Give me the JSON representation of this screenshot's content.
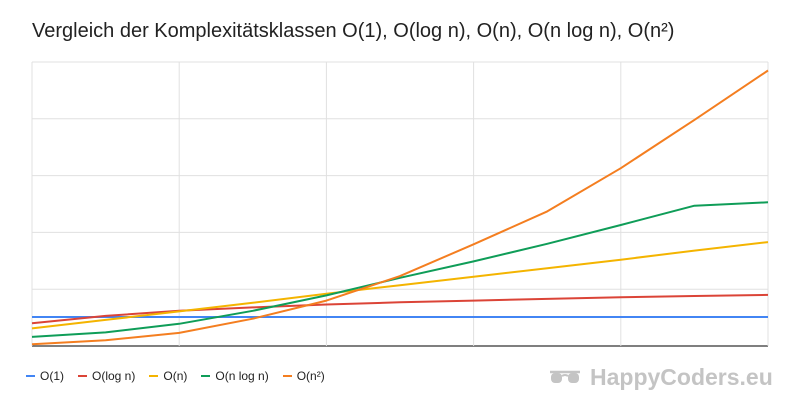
{
  "chart_data": {
    "type": "line",
    "title": "Vergleich der Komplexitätsklassen O(1), O(log n), O(n), O(n log n), O(n²)",
    "xlabel": "",
    "ylabel": "",
    "x": [
      1,
      2,
      3,
      4,
      5,
      6,
      7,
      8,
      9,
      10,
      11
    ],
    "xlim": [
      1,
      11
    ],
    "ylim": [
      0,
      50
    ],
    "grid": true,
    "legend_position": "bottom-left",
    "series": [
      {
        "name": "O(1)",
        "color": "#4285f4",
        "values": [
          5.1,
          5.1,
          5.1,
          5.1,
          5.1,
          5.1,
          5.1,
          5.1,
          5.1,
          5.1,
          5.1
        ]
      },
      {
        "name": "O(log n)",
        "color": "#db4437",
        "values": [
          4.0,
          5.3,
          6.2,
          6.8,
          7.3,
          7.7,
          8.0,
          8.3,
          8.6,
          8.8,
          9.0
        ]
      },
      {
        "name": "O(n)",
        "color": "#f4b400",
        "values": [
          3.1,
          4.6,
          6.1,
          7.6,
          9.2,
          10.7,
          12.2,
          13.7,
          15.2,
          16.8,
          18.3
        ]
      },
      {
        "name": "O(n log n)",
        "color": "#0f9d58",
        "values": [
          1.6,
          2.4,
          3.9,
          6.2,
          8.9,
          12.0,
          14.9,
          18.0,
          21.3,
          24.7,
          25.3
        ]
      },
      {
        "name": "O(n²)",
        "color": "#f47e20",
        "values": [
          0.3,
          1.0,
          2.3,
          4.8,
          8.0,
          12.3,
          17.9,
          23.7,
          31.3,
          39.8,
          48.5
        ]
      }
    ]
  },
  "branding": {
    "logo_text": "HappyCoders.eu"
  }
}
